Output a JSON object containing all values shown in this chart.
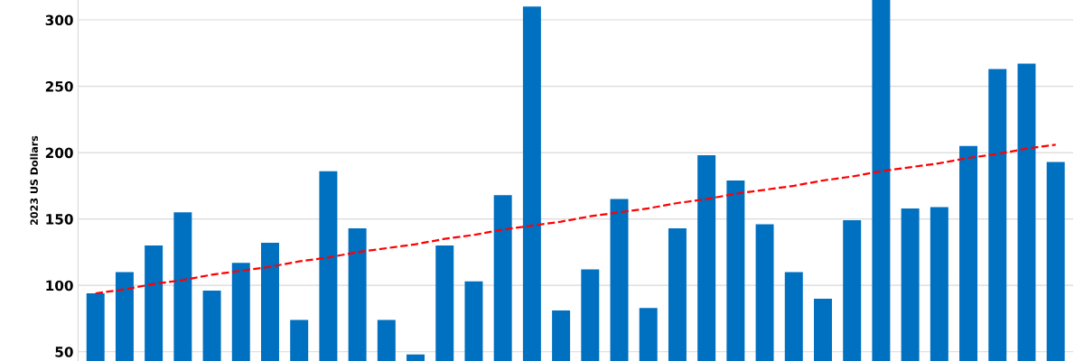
{
  "chart_data": {
    "type": "bar",
    "ylabel": "2023 US Dollars",
    "categories": [
      null,
      null,
      null,
      null,
      null,
      null,
      null,
      null,
      null,
      null,
      null,
      null,
      null,
      null,
      null,
      null,
      null,
      null,
      null,
      null,
      null,
      null,
      null,
      null,
      null,
      null,
      null,
      null,
      null,
      null,
      null,
      null,
      null,
      null
    ],
    "series": [
      {
        "color": "#0070c0",
        "values": [
          94,
          110,
          130,
          155,
          96,
          117,
          132,
          74,
          186,
          143,
          74,
          48,
          130,
          103,
          168,
          310,
          81,
          112,
          165,
          83,
          143,
          198,
          179,
          146,
          110,
          90,
          149,
          315,
          158,
          159,
          205,
          263,
          267,
          193
        ]
      },
      {
        "type": "line",
        "color": "#ff0000",
        "line_style": "dashed",
        "values": [
          94,
          97,
          101,
          104,
          108,
          111,
          114,
          118,
          121,
          125,
          128,
          131,
          135,
          138,
          142,
          145,
          148,
          152,
          155,
          158,
          162,
          165,
          169,
          172,
          175,
          179,
          182,
          186,
          189,
          192,
          196,
          199,
          203,
          206
        ]
      }
    ],
    "ylim": [
      43,
      315
    ],
    "yticks": [
      50,
      100,
      150,
      200,
      250,
      300
    ],
    "grid": "y",
    "tick_labels": "y"
  }
}
